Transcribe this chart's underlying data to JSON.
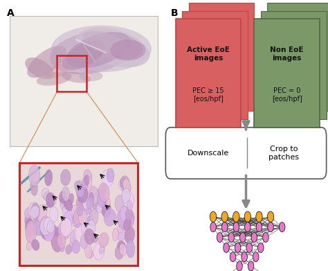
{
  "fig_width": 4.74,
  "fig_height": 3.91,
  "dpi": 100,
  "bg_color": "#ffffff",
  "label_A": "A",
  "label_B": "B",
  "active_eoe_color": "#d96060",
  "active_eoe_dark": "#c04444",
  "non_eoe_color": "#7a9868",
  "non_eoe_dark": "#526844",
  "active_text_bold": "Active EoE\nimages",
  "active_text_normal": "PEC ≥ 15\n[eos/hpf]",
  "non_text_bold": "Non EoE\nimages",
  "non_text_normal": "PEC = 0\n[eos/hpf]",
  "box1_text": "Downscale",
  "box2_text": "Crop to\npatches",
  "arrow_color": "#888888",
  "node_pink": "#e878c8",
  "node_orange": "#f0a820",
  "node_green": "#38c038",
  "node_orange2": "#f07020",
  "red_box_color": "#cc2222",
  "zoom_line_color": "#d4884c",
  "tissue_bg": "#f0ece8",
  "inset_bg": "#e8d8d8"
}
